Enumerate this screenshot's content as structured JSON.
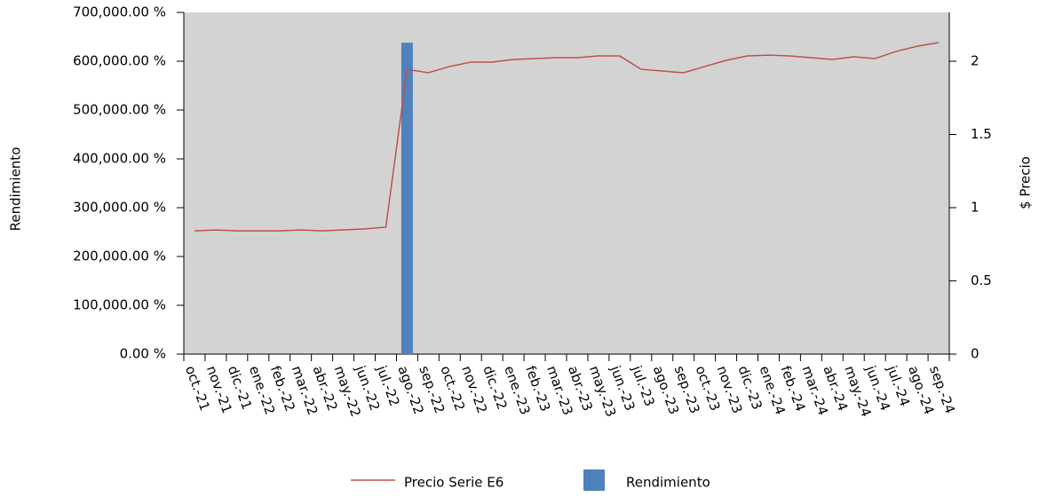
{
  "chart_data": {
    "type": "combo",
    "categories": [
      "oct.-21",
      "nov.-21",
      "dic.-21",
      "ene.-22",
      "feb.-22",
      "mar.-22",
      "abr.-22",
      "may.-22",
      "jun.-22",
      "jul.-22",
      "ago.-22",
      "sep.-22",
      "oct.-22",
      "nov.-22",
      "dic.-22",
      "ene.-23",
      "feb.-23",
      "mar.-23",
      "abr.-23",
      "may.-23",
      "jun.-23",
      "jul.-23",
      "ago.-23",
      "sep.-23",
      "oct.-23",
      "nov.-23",
      "dic.-23",
      "ene.-24",
      "feb.-24",
      "mar.-24",
      "abr.-24",
      "may.-24",
      "jun.-24",
      "jul.-24",
      "ago.-24",
      "sep.-24"
    ],
    "series": [
      {
        "name": "Precio Serie E6",
        "type": "line",
        "axis": "y2",
        "color": "#c0504d",
        "values": [
          0.842,
          0.848,
          0.842,
          0.842,
          0.842,
          0.848,
          0.842,
          0.848,
          0.855,
          0.867,
          1.945,
          1.921,
          1.964,
          1.994,
          1.994,
          2.012,
          2.018,
          2.024,
          2.024,
          2.036,
          2.036,
          1.945,
          1.933,
          1.921,
          1.964,
          2.006,
          2.036,
          2.042,
          2.036,
          2.024,
          2.012,
          2.03,
          2.018,
          2.067,
          2.103,
          2.127
        ]
      },
      {
        "name": "Rendimiento",
        "type": "bar",
        "color": "#4f81bd",
        "values": [
          null,
          null,
          null,
          null,
          null,
          null,
          null,
          null,
          null,
          null,
          638000,
          null,
          null,
          null,
          null,
          null,
          null,
          null,
          null,
          null,
          null,
          null,
          null,
          null,
          null,
          null,
          null,
          null,
          null,
          null,
          null,
          null,
          null,
          null,
          null,
          null
        ]
      }
    ],
    "ylabel": "Rendimiento",
    "y2label": "$ Precio",
    "ylim": [
      0,
      700000
    ],
    "yticks": [
      {
        "value": 0,
        "label": "0.00 %"
      },
      {
        "value": 100000,
        "label": "100,000.00 %"
      },
      {
        "value": 200000,
        "label": "200,000.00 %"
      },
      {
        "value": 300000,
        "label": "300,000.00 %"
      },
      {
        "value": 400000,
        "label": "400,000.00 %"
      },
      {
        "value": 500000,
        "label": "500,000.00 %"
      },
      {
        "value": 600000,
        "label": "600,000.00 %"
      },
      {
        "value": 700000,
        "label": "700,000.00 %"
      }
    ],
    "y2lim": [
      0,
      2.3333
    ],
    "y2ticks": [
      0,
      0.5,
      1,
      1.5,
      2
    ],
    "legend": "bottom",
    "background": "#d3d3d3"
  }
}
